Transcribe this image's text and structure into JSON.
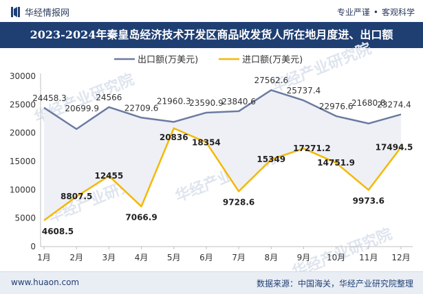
{
  "header": {
    "brand": "华经情报网",
    "tagline_left": "专业严谨",
    "tagline_dot": "•",
    "tagline_right": "客观科学"
  },
  "title": "2023-2024年秦皇岛经济技术开发区商品收发货人所在地月度进、出口额",
  "watermark": "华经产业研究院",
  "colors": {
    "export": "#6b7aa1",
    "import": "#f5b800",
    "title_bg": "#1f3f73",
    "fill": "#eef0f5"
  },
  "chart_data": {
    "type": "line",
    "categories": [
      "1月",
      "2月",
      "3月",
      "4月",
      "5月",
      "6月",
      "7月",
      "8月",
      "9月",
      "10月",
      "11月",
      "12月"
    ],
    "series": [
      {
        "name": "出口额(万美元)",
        "values": [
          24458.3,
          20699.9,
          24566,
          22709.6,
          21960.3,
          23590.9,
          23840.6,
          27562.6,
          25737.4,
          22976.6,
          21680.8,
          23274.4
        ],
        "labels": [
          "24458.3",
          "20699.9",
          "24566",
          "22709.6",
          "21960.3",
          "23590.9",
          "23840.6",
          "27562.6",
          "25737.4",
          "22976.6",
          "21680.8",
          "23274.4"
        ]
      },
      {
        "name": "进口额(万美元)",
        "values": [
          4608.5,
          8807.5,
          12455,
          7066.9,
          20836,
          18354,
          9728.6,
          15349,
          17271.2,
          14751.9,
          9973.6,
          17494.5
        ],
        "labels": [
          "4608.5",
          "8807.5",
          "12455",
          "7066.9",
          "20836",
          "18354",
          "9728.6",
          "15349",
          "17271.2",
          "14751.9",
          "9973.6",
          "17494.5"
        ]
      }
    ],
    "yticks": [
      "0",
      "5000",
      "10000",
      "15000",
      "20000",
      "25000",
      "30000"
    ],
    "ylim": [
      0,
      30000
    ],
    "legend_position": "top-center",
    "grid": false
  },
  "footer": {
    "url": "www.huaon.com",
    "source": "数据来源：中国海关，华经产业研究院整理"
  }
}
